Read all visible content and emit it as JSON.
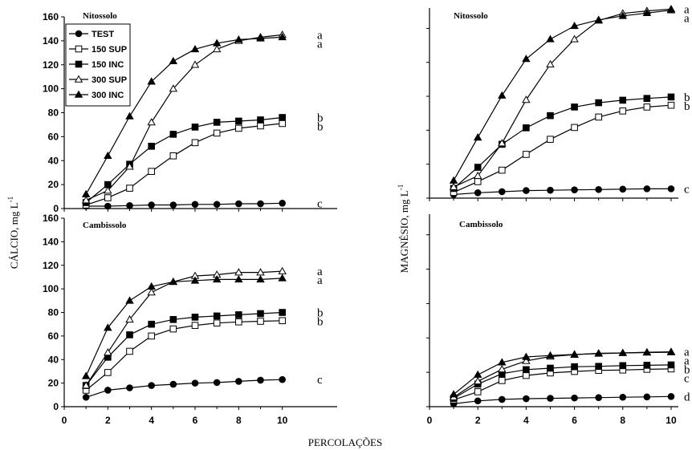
{
  "figure": {
    "xlabel": "PERCOLAÇÕES",
    "ylabel_left": "CÁLCIO, mg L",
    "ylabel_right": "MAGNÉSIO, mg L",
    "ylabel_superscript": "-1",
    "legend": [
      "TEST",
      "150 SUP",
      "150 INC",
      "300 SUP",
      "300 INC"
    ]
  },
  "chart_data": [
    {
      "type": "line",
      "title": "Nitossolo",
      "xlim": [
        0,
        12
      ],
      "ylim": [
        0,
        160
      ],
      "xticks": [
        0,
        2,
        4,
        6,
        8,
        10
      ],
      "yticks": [
        0,
        20,
        40,
        60,
        80,
        100,
        120,
        140,
        160
      ],
      "x": [
        1,
        2,
        3,
        4,
        5,
        6,
        7,
        8,
        9,
        10
      ],
      "series": [
        {
          "name": "TEST",
          "values": [
            2,
            2,
            2.5,
            3,
            3,
            3.5,
            3.5,
            4,
            4,
            4.5
          ],
          "letter": "c"
        },
        {
          "name": "150 SUP",
          "values": [
            3,
            9,
            17,
            31,
            44,
            55,
            63,
            67,
            69,
            71
          ],
          "letter": "b"
        },
        {
          "name": "150 INC",
          "values": [
            5,
            20,
            37,
            52,
            62,
            68,
            72,
            73,
            74,
            76
          ],
          "letter": "b"
        },
        {
          "name": "300 SUP",
          "values": [
            7,
            15,
            35,
            72,
            100,
            120,
            133,
            140,
            143,
            145
          ],
          "letter": "a"
        },
        {
          "name": "300 INC",
          "values": [
            12,
            44,
            77,
            106,
            123,
            133,
            138,
            141,
            142,
            143
          ],
          "letter": "a"
        }
      ]
    },
    {
      "type": "line",
      "title": "Cambissolo",
      "xlim": [
        0,
        12
      ],
      "ylim": [
        0,
        160
      ],
      "xticks": [
        0,
        2,
        4,
        6,
        8,
        10
      ],
      "yticks": [
        0,
        20,
        40,
        60,
        80,
        100,
        120,
        140,
        160
      ],
      "x": [
        1,
        2,
        3,
        4,
        5,
        6,
        7,
        8,
        9,
        10
      ],
      "series": [
        {
          "name": "TEST",
          "values": [
            8,
            14,
            16,
            18,
            19,
            20,
            20.5,
            21.5,
            22.5,
            23
          ],
          "letter": "c"
        },
        {
          "name": "150 SUP",
          "values": [
            14,
            29,
            47,
            60,
            66,
            69,
            71,
            72,
            72.5,
            73
          ],
          "letter": "b"
        },
        {
          "name": "150 INC",
          "values": [
            18,
            42,
            61,
            70,
            74,
            76,
            77,
            78,
            79,
            80
          ],
          "letter": "b"
        },
        {
          "name": "300 SUP",
          "values": [
            18,
            46,
            74,
            97,
            106,
            111,
            112,
            114,
            114,
            115
          ],
          "letter": "a"
        },
        {
          "name": "300 INC",
          "values": [
            26,
            67,
            90,
            102,
            106,
            107,
            108,
            108,
            108,
            109
          ],
          "letter": "a"
        }
      ]
    },
    {
      "type": "line",
      "title": "Nitossolo",
      "xlim": [
        0,
        10.3
      ],
      "ylim": [
        0,
        53
      ],
      "xticks": [
        0,
        2,
        4,
        6,
        8,
        10
      ],
      "x": [
        1,
        2,
        3,
        4,
        5,
        6,
        7,
        8,
        9,
        10
      ],
      "series": [
        {
          "name": "TEST",
          "values": [
            1,
            1.5,
            1.8,
            2.1,
            2.2,
            2.3,
            2.4,
            2.5,
            2.6,
            2.6
          ],
          "letter": "c"
        },
        {
          "name": "150 SUP",
          "values": [
            1.6,
            4.6,
            7.8,
            12.2,
            16.4,
            19.7,
            22.6,
            24.3,
            25.4,
            25.9
          ],
          "letter": "b"
        },
        {
          "name": "150 INC",
          "values": [
            2.7,
            8.6,
            15,
            19.6,
            23,
            25.4,
            26.6,
            27.3,
            27.8,
            28.2
          ],
          "letter": "b"
        },
        {
          "name": "300 SUP",
          "values": [
            3.1,
            6.2,
            15.3,
            27.4,
            37.3,
            44.3,
            49.5,
            51.5,
            52.2,
            52.7
          ],
          "letter": "a"
        },
        {
          "name": "300 INC",
          "values": [
            4.9,
            16.9,
            28.6,
            38.8,
            44.3,
            48,
            49.7,
            50.8,
            51.6,
            52.4
          ],
          "letter": "a"
        }
      ]
    },
    {
      "type": "line",
      "title": "Cambissolo",
      "xlim": [
        0,
        10.3
      ],
      "ylim": [
        0,
        53
      ],
      "xticks": [
        0,
        2,
        4,
        6,
        8,
        10
      ],
      "x": [
        1,
        2,
        3,
        4,
        5,
        6,
        7,
        8,
        9,
        10
      ],
      "series": [
        {
          "name": "TEST",
          "values": [
            0.8,
            1.6,
            2,
            2.2,
            2.3,
            2.4,
            2.5,
            2.6,
            2.7,
            2.8
          ],
          "letter": "d"
        },
        {
          "name": "150 SUP",
          "values": [
            1.9,
            4.1,
            7.2,
            8.6,
            9.3,
            9.7,
            10,
            10.1,
            10.3,
            10.4
          ],
          "letter": "c"
        },
        {
          "name": "150 INC",
          "values": [
            2.3,
            6.2,
            9.1,
            10.2,
            10.6,
            11,
            11.1,
            11.3,
            11.4,
            11.5
          ],
          "letter": "b"
        },
        {
          "name": "300 SUP",
          "values": [
            2.6,
            7,
            10.3,
            12.6,
            13.8,
            14.3,
            14.7,
            14.8,
            15,
            15.1
          ],
          "letter": "a"
        },
        {
          "name": "300 INC",
          "values": [
            3.4,
            8.8,
            12.2,
            13.7,
            14.1,
            14.4,
            14.6,
            14.8,
            14.9,
            15
          ],
          "letter": "a"
        }
      ]
    }
  ]
}
